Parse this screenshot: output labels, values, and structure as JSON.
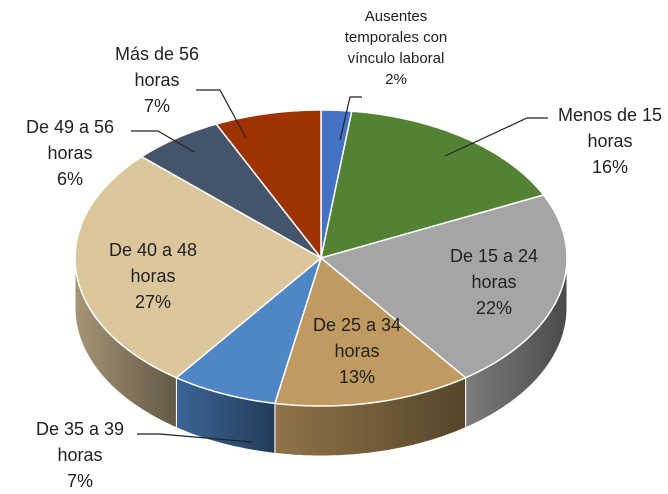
{
  "chart_data": {
    "type": "pie",
    "categories": [
      "Ausentes temporales con vínculo laboral",
      "Menos de 15 horas",
      "De 15 a 24 horas",
      "De 25 a 34 horas",
      "De 35 a 39 horas",
      "De 40 a 48 horas",
      "De 49 a 56 horas",
      "Más de 56 horas"
    ],
    "values": [
      2,
      16,
      22,
      13,
      7,
      27,
      6,
      7
    ],
    "value_labels": [
      "2%",
      "16%",
      "22%",
      "13%",
      "7%",
      "27%",
      "6%",
      "7%"
    ],
    "colors": [
      "#4472c4",
      "#548235",
      "#a5a5a5",
      "#c09a60",
      "#4e86c6",
      "#dcc69c",
      "#44546a",
      "#9e3300"
    ]
  }
}
